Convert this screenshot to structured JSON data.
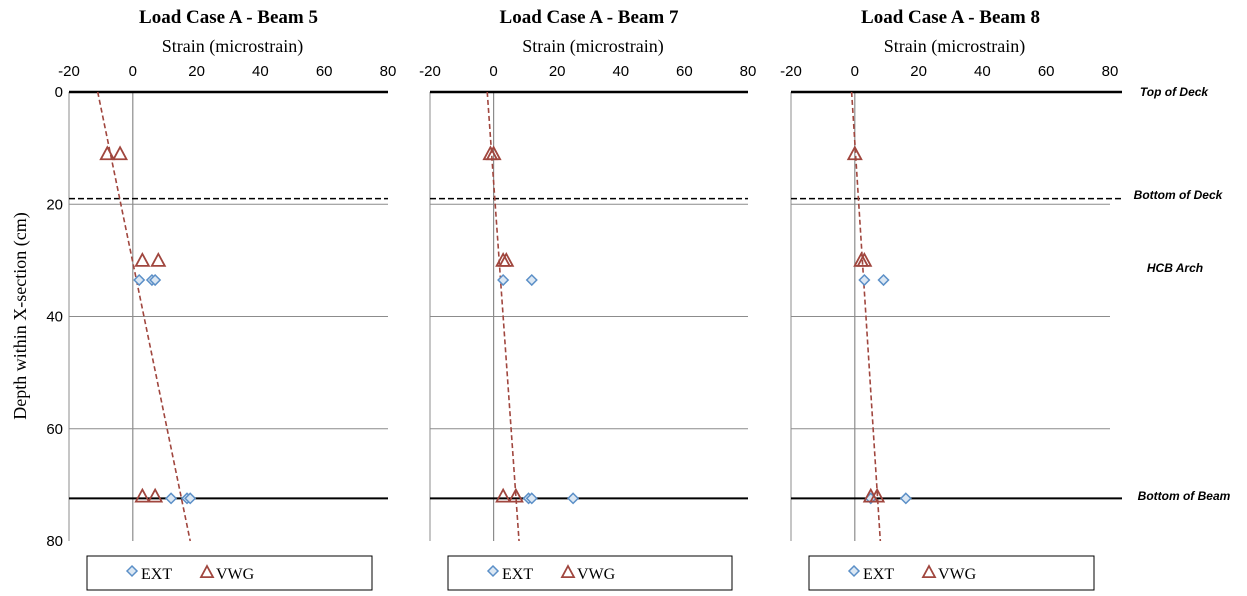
{
  "colors": {
    "ext": "#5b8fc7",
    "ext_fill": "#dbe7f3",
    "vwg": "#a0463e",
    "trend": "#a0463e",
    "grid": "#8c8c8c",
    "axis": "#000000"
  },
  "shared": {
    "xlabel": "Strain (microstrain)",
    "ylabel": "Depth within X-section (cm)",
    "xlim": [
      -20,
      80
    ],
    "ylim": [
      0,
      80
    ],
    "xticks": [
      "-20",
      "0",
      "20",
      "40",
      "60",
      "80"
    ],
    "yticks": [
      "0",
      "20",
      "40",
      "60",
      "80"
    ],
    "legend": [
      "EXT",
      "VWG"
    ],
    "annotations": [
      {
        "text": "Top of Deck",
        "y": 0
      },
      {
        "text": "Bottom of Deck",
        "y": 19
      },
      {
        "text": "HCB Arch",
        "y": 31
      },
      {
        "text": "Bottom of Beam",
        "y": 72.4
      }
    ],
    "reference_lines": {
      "top_of_deck": 0,
      "bottom_of_deck": 19,
      "bottom_of_beam": 72.4
    }
  },
  "chart_data": [
    {
      "type": "scatter",
      "title": "Load Case A - Beam 5",
      "xlabel": "Strain (microstrain)",
      "ylabel": "Depth within X-section (cm)",
      "xlim": [
        -20,
        80
      ],
      "ylim": [
        0,
        80
      ],
      "y_inverted": true,
      "grid": true,
      "legend_position": "bottom",
      "series": [
        {
          "name": "EXT",
          "marker": "diamond",
          "points": [
            [
              2,
              33.5
            ],
            [
              6,
              33.5
            ],
            [
              7,
              33.5
            ],
            [
              12,
              72.4
            ],
            [
              17,
              72.4
            ],
            [
              18,
              72.4
            ]
          ]
        },
        {
          "name": "VWG",
          "marker": "triangle",
          "points": [
            [
              -8,
              11
            ],
            [
              -4,
              11
            ],
            [
              3,
              30
            ],
            [
              8,
              30
            ],
            [
              3,
              72
            ],
            [
              7,
              72
            ]
          ]
        }
      ],
      "trendline": [
        [
          -11,
          0
        ],
        [
          18,
          80
        ]
      ]
    },
    {
      "type": "scatter",
      "title": "Load Case A - Beam 7",
      "xlabel": "Strain (microstrain)",
      "ylabel": "",
      "xlim": [
        -20,
        80
      ],
      "ylim": [
        0,
        80
      ],
      "y_inverted": true,
      "grid": true,
      "legend_position": "bottom",
      "series": [
        {
          "name": "EXT",
          "marker": "diamond",
          "points": [
            [
              3,
              33.5
            ],
            [
              12,
              33.5
            ],
            [
              11,
              72.4
            ],
            [
              12,
              72.4
            ],
            [
              25,
              72.4
            ]
          ]
        },
        {
          "name": "VWG",
          "marker": "triangle",
          "points": [
            [
              -1,
              11
            ],
            [
              0,
              11
            ],
            [
              3,
              30
            ],
            [
              4,
              30
            ],
            [
              3,
              72
            ],
            [
              7,
              72
            ]
          ]
        }
      ],
      "trendline": [
        [
          -2,
          0
        ],
        [
          8,
          80
        ]
      ]
    },
    {
      "type": "scatter",
      "title": "Load Case A - Beam 8",
      "xlabel": "Strain (microstrain)",
      "ylabel": "",
      "xlim": [
        -20,
        80
      ],
      "ylim": [
        0,
        80
      ],
      "y_inverted": true,
      "grid": true,
      "legend_position": "bottom",
      "series": [
        {
          "name": "EXT",
          "marker": "diamond",
          "points": [
            [
              3,
              33.5
            ],
            [
              9,
              33.5
            ],
            [
              5,
              72.4
            ],
            [
              16,
              72.4
            ]
          ]
        },
        {
          "name": "VWG",
          "marker": "triangle",
          "points": [
            [
              0,
              11
            ],
            [
              2,
              30
            ],
            [
              3,
              30
            ],
            [
              5,
              72
            ],
            [
              7,
              72
            ]
          ]
        }
      ],
      "trendline": [
        [
          -1,
          0
        ],
        [
          8,
          80
        ]
      ]
    }
  ]
}
